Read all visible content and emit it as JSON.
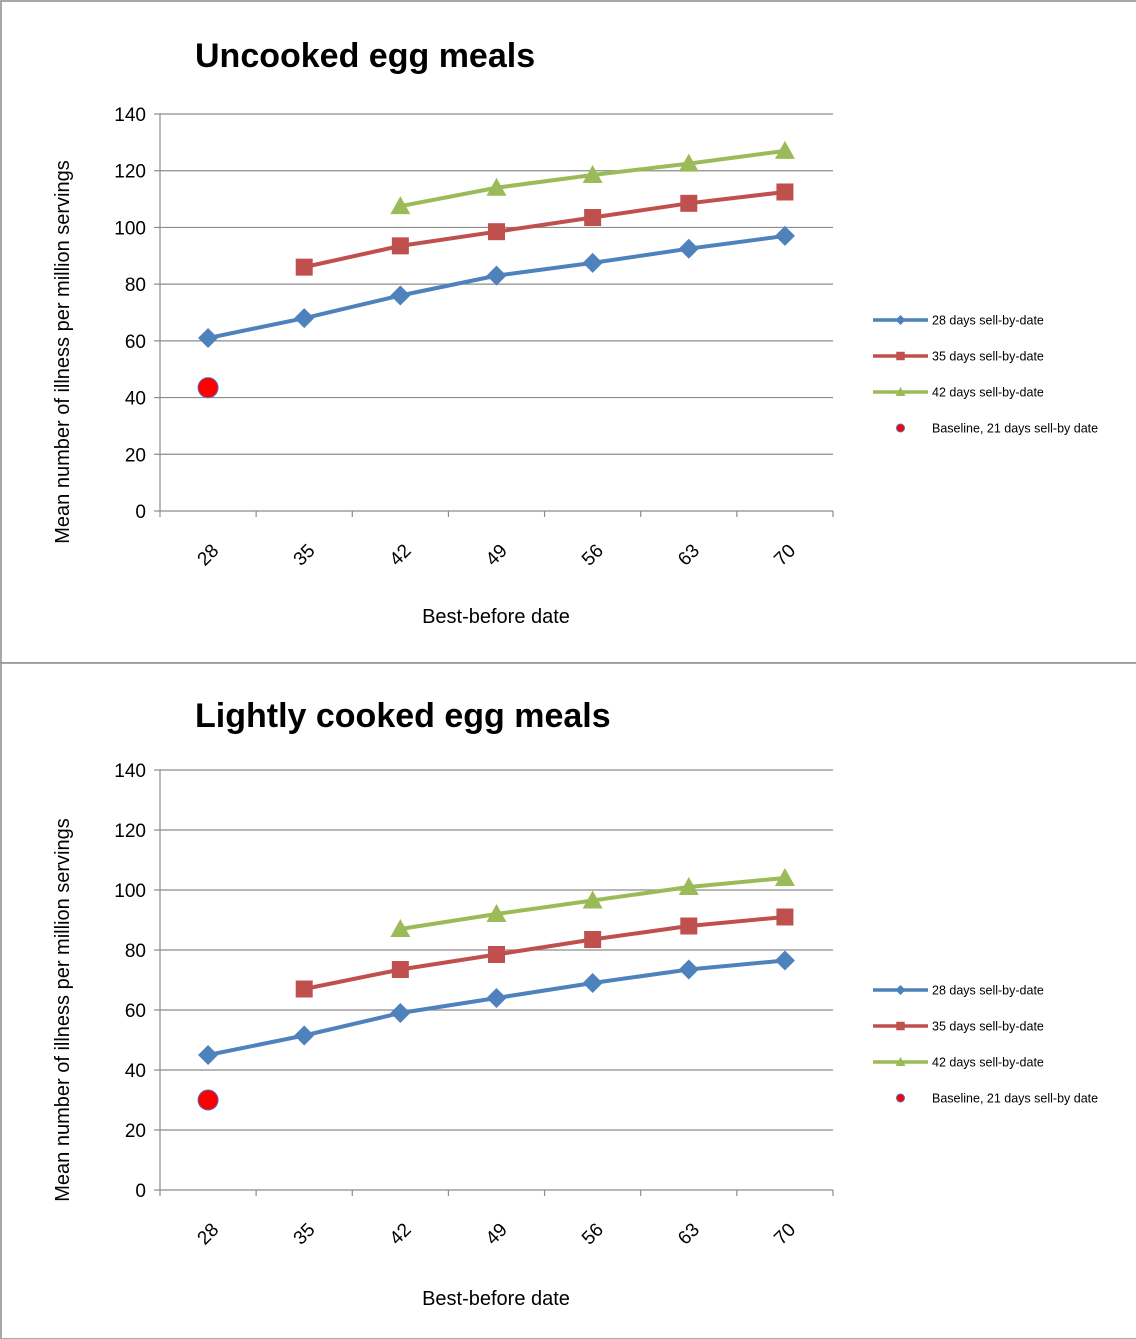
{
  "chart_data": [
    {
      "type": "line",
      "title": "Uncooked egg meals",
      "xlabel": "Best-before date",
      "ylabel": "Mean number of illness per million servings",
      "categories": [
        "28",
        "35",
        "42",
        "49",
        "56",
        "63",
        "70"
      ],
      "ylim": [
        0,
        140
      ],
      "yticks": [
        0,
        20,
        40,
        60,
        80,
        100,
        120,
        140
      ],
      "grid": true,
      "legend": "right",
      "series": [
        {
          "name": "28 days sell-by-date",
          "color": "#4F81BD",
          "marker": "diamond",
          "values": [
            61,
            68,
            76,
            83,
            87.5,
            92.5,
            97
          ]
        },
        {
          "name": "35 days sell-by-date",
          "color": "#C0504D",
          "marker": "square",
          "values": [
            null,
            86,
            93.5,
            98.5,
            103.5,
            108.5,
            112.5
          ]
        },
        {
          "name": "42 days sell-by-date",
          "color": "#9BBB59",
          "marker": "triangle",
          "values": [
            null,
            null,
            107.5,
            114,
            118.5,
            122.5,
            127
          ]
        },
        {
          "name": "Baseline, 21 days sell-by date",
          "color": "#FF0000",
          "marker": "circle",
          "values": [
            43.5,
            null,
            null,
            null,
            null,
            null,
            null
          ]
        }
      ]
    },
    {
      "type": "line",
      "title": "Lightly cooked egg meals",
      "xlabel": "Best-before date",
      "ylabel": "Mean number of illness per million servings",
      "categories": [
        "28",
        "35",
        "42",
        "49",
        "56",
        "63",
        "70"
      ],
      "ylim": [
        0,
        140
      ],
      "yticks": [
        0,
        20,
        40,
        60,
        80,
        100,
        120,
        140
      ],
      "grid": true,
      "legend": "right",
      "series": [
        {
          "name": "28 days sell-by-date",
          "color": "#4F81BD",
          "marker": "diamond",
          "values": [
            45,
            51.5,
            59,
            64,
            69,
            73.5,
            76.5
          ]
        },
        {
          "name": "35 days sell-by-date",
          "color": "#C0504D",
          "marker": "square",
          "values": [
            null,
            67,
            73.5,
            78.5,
            83.5,
            88,
            91
          ]
        },
        {
          "name": "42 days sell-by-date",
          "color": "#9BBB59",
          "marker": "triangle",
          "values": [
            null,
            null,
            87,
            92,
            96.5,
            101,
            104
          ]
        },
        {
          "name": "Baseline, 21 days sell-by date",
          "color": "#FF0000",
          "marker": "circle",
          "values": [
            30,
            null,
            null,
            null,
            null,
            null,
            null
          ]
        }
      ]
    }
  ]
}
